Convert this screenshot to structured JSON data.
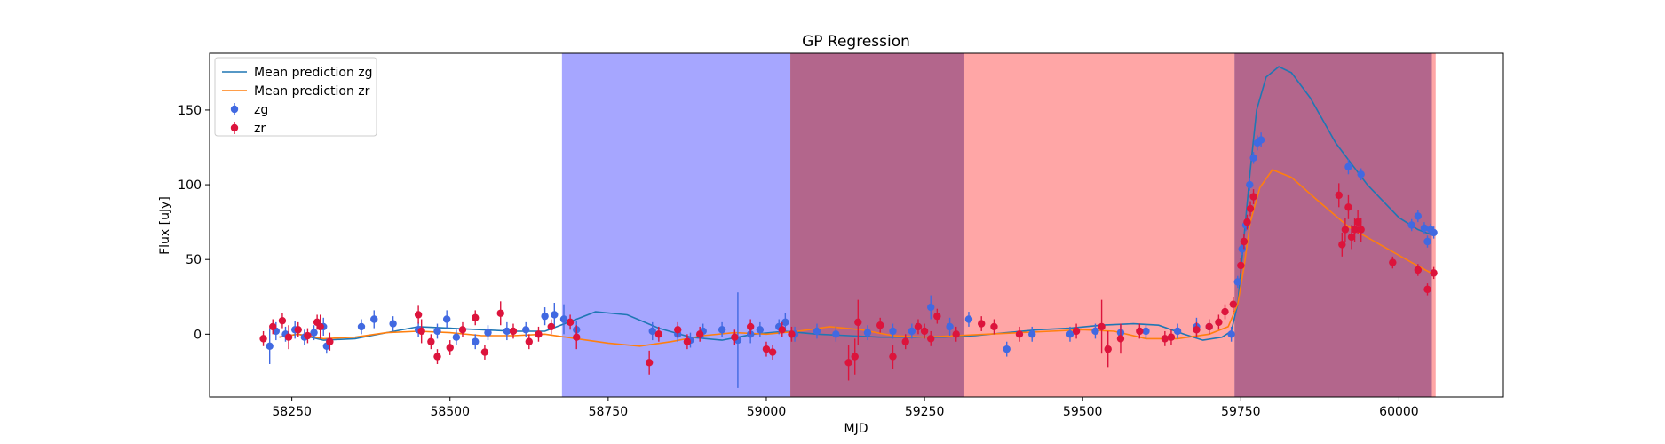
{
  "chart_data": {
    "type": "scatter",
    "title": "GP Regression",
    "xlabel": "MJD",
    "ylabel": "Flux [uJy]",
    "xlim": [
      58120,
      60165
    ],
    "ylim": [
      -42,
      188
    ],
    "xticks": [
      58250,
      58500,
      58750,
      59000,
      59250,
      59500,
      59750,
      60000
    ],
    "yticks": [
      0,
      50,
      100,
      150
    ],
    "grid": false,
    "legend_placement": "top-left",
    "spans": [
      {
        "x0": 58677,
        "x1": 59038,
        "color": "#0000ff",
        "alpha": 0.35
      },
      {
        "x0": 59038,
        "x1": 59313,
        "color": "#800040",
        "alpha": 0.6
      },
      {
        "x0": 59313,
        "x1": 59740,
        "color": "#ff0000",
        "alpha": 0.35
      },
      {
        "x0": 59740,
        "x1": 60052,
        "color": "#800040",
        "alpha": 0.6
      },
      {
        "x0": 60052,
        "x1": 60058,
        "color": "#ff0000",
        "alpha": 0.35
      }
    ],
    "series": [
      {
        "name": "Mean prediction zg",
        "kind": "line",
        "color": "#1f77b4",
        "x": [
          58230,
          58260,
          58300,
          58350,
          58400,
          58450,
          58500,
          58550,
          58600,
          58650,
          58700,
          58730,
          58780,
          58830,
          58880,
          58930,
          58980,
          59030,
          59080,
          59130,
          59180,
          59230,
          59280,
          59330,
          59380,
          59430,
          59480,
          59530,
          59580,
          59620,
          59660,
          59690,
          59720,
          59735,
          59745,
          59755,
          59765,
          59775,
          59790,
          59810,
          59830,
          59860,
          59900,
          59950,
          60000,
          60030,
          60055
        ],
        "y": [
          -2,
          0,
          -4,
          -3,
          1,
          5,
          4,
          3,
          2,
          2,
          10,
          15,
          13,
          4,
          -2,
          -4,
          0,
          2,
          0,
          -1,
          -2,
          -2,
          -2,
          -1,
          1,
          3,
          4,
          6,
          7,
          6,
          0,
          -4,
          -2,
          2,
          20,
          65,
          110,
          150,
          172,
          179,
          175,
          158,
          128,
          100,
          78,
          70,
          66
        ]
      },
      {
        "name": "Mean prediction zr",
        "kind": "line",
        "color": "#ff7f0e",
        "x": [
          58230,
          58260,
          58300,
          58350,
          58400,
          58450,
          58500,
          58550,
          58600,
          58650,
          58700,
          58750,
          58800,
          58850,
          58900,
          58950,
          59000,
          59050,
          59100,
          59150,
          59200,
          59250,
          59300,
          59350,
          59400,
          59450,
          59500,
          59550,
          59600,
          59650,
          59700,
          59730,
          59745,
          59755,
          59765,
          59780,
          59800,
          59830,
          59870,
          59920,
          59970,
          60020,
          60055
        ],
        "y": [
          -2,
          0,
          -3,
          -2,
          1,
          2,
          1,
          -1,
          -1,
          0,
          -3,
          -6,
          -8,
          -5,
          -1,
          1,
          0,
          2,
          5,
          3,
          -1,
          -2,
          -1,
          0,
          1,
          2,
          3,
          2,
          -3,
          -3,
          0,
          5,
          20,
          45,
          75,
          98,
          110,
          105,
          90,
          72,
          60,
          48,
          40
        ]
      },
      {
        "name": "zg",
        "kind": "errorbar",
        "color": "#4169e1",
        "x": [
          58215,
          58225,
          58240,
          58255,
          58270,
          58285,
          58300,
          58305,
          58360,
          58380,
          58410,
          58450,
          58480,
          58495,
          58510,
          58540,
          58560,
          58590,
          58620,
          58650,
          58665,
          58680,
          58700,
          58820,
          58860,
          58880,
          58900,
          58930,
          58955,
          58975,
          58990,
          59020,
          59030,
          59045,
          59080,
          59110,
          59160,
          59200,
          59230,
          59260,
          59290,
          59320,
          59380,
          59420,
          59480,
          59520,
          59560,
          59600,
          59650,
          59680,
          59700,
          59735,
          59745,
          59752,
          59758,
          59764,
          59770,
          59776,
          59782,
          59920,
          59940,
          60020,
          60030,
          60040,
          60045,
          60050,
          60055
        ],
        "y": [
          -8,
          2,
          0,
          3,
          -2,
          1,
          5,
          -8,
          5,
          10,
          7,
          3,
          2,
          10,
          -2,
          -5,
          1,
          2,
          3,
          12,
          13,
          10,
          3,
          2,
          0,
          -4,
          2,
          3,
          -4,
          0,
          3,
          5,
          8,
          0,
          2,
          0,
          1,
          2,
          2,
          18,
          5,
          10,
          -10,
          0,
          0,
          2,
          1,
          2,
          2,
          5,
          5,
          0,
          35,
          57,
          73,
          100,
          118,
          128,
          130,
          112,
          107,
          73,
          79,
          71,
          62,
          70,
          68
        ],
        "err": [
          12,
          6,
          5,
          6,
          5,
          5,
          6,
          5,
          5,
          6,
          5,
          5,
          5,
          6,
          5,
          5,
          5,
          6,
          5,
          6,
          8,
          10,
          6,
          6,
          5,
          5,
          5,
          5,
          32,
          6,
          5,
          5,
          6,
          5,
          5,
          5,
          5,
          5,
          5,
          8,
          6,
          5,
          5,
          5,
          5,
          5,
          5,
          5,
          5,
          6,
          5,
          5,
          4,
          4,
          4,
          4,
          4,
          5,
          5,
          5,
          4,
          4,
          4,
          4,
          4,
          4,
          4
        ]
      },
      {
        "name": "zr",
        "kind": "errorbar",
        "color": "#dc143c",
        "x": [
          58205,
          58220,
          58235,
          58245,
          58260,
          58275,
          58290,
          58295,
          58310,
          58450,
          58455,
          58470,
          58480,
          58500,
          58520,
          58540,
          58555,
          58580,
          58600,
          58625,
          58640,
          58660,
          58690,
          58700,
          58815,
          58830,
          58860,
          58875,
          58895,
          58950,
          58975,
          59000,
          59010,
          59025,
          59040,
          59130,
          59140,
          59145,
          59180,
          59200,
          59220,
          59240,
          59250,
          59260,
          59270,
          59300,
          59340,
          59360,
          59400,
          59490,
          59530,
          59540,
          59560,
          59590,
          59630,
          59640,
          59680,
          59700,
          59715,
          59725,
          59738,
          59750,
          59755,
          59760,
          59765,
          59770,
          59905,
          59910,
          59915,
          59920,
          59925,
          59930,
          59935,
          59940,
          59990,
          60030,
          60045,
          60055
        ],
        "y": [
          -3,
          5,
          9,
          -2,
          3,
          -1,
          8,
          5,
          -5,
          13,
          2,
          -5,
          -15,
          -9,
          3,
          11,
          -12,
          14,
          2,
          -5,
          0,
          5,
          8,
          -2,
          -19,
          0,
          3,
          -5,
          0,
          -2,
          5,
          -10,
          -12,
          3,
          0,
          -19,
          -15,
          8,
          6,
          -15,
          -5,
          5,
          2,
          -3,
          12,
          0,
          7,
          5,
          0,
          2,
          5,
          -10,
          -3,
          2,
          -3,
          -2,
          3,
          5,
          8,
          15,
          20,
          46,
          62,
          75,
          84,
          92,
          93,
          60,
          70,
          85,
          65,
          70,
          75,
          70,
          48,
          43,
          30,
          41
        ],
        "err": [
          5,
          5,
          5,
          8,
          5,
          5,
          5,
          8,
          6,
          6,
          8,
          5,
          5,
          5,
          5,
          5,
          5,
          8,
          5,
          5,
          5,
          5,
          5,
          8,
          8,
          5,
          5,
          5,
          5,
          5,
          5,
          5,
          5,
          5,
          5,
          12,
          12,
          15,
          5,
          8,
          5,
          5,
          5,
          5,
          5,
          5,
          5,
          5,
          5,
          5,
          18,
          12,
          10,
          5,
          5,
          5,
          5,
          5,
          5,
          5,
          5,
          5,
          5,
          5,
          5,
          5,
          8,
          8,
          8,
          8,
          8,
          8,
          8,
          8,
          4,
          4,
          4,
          4
        ]
      }
    ]
  }
}
